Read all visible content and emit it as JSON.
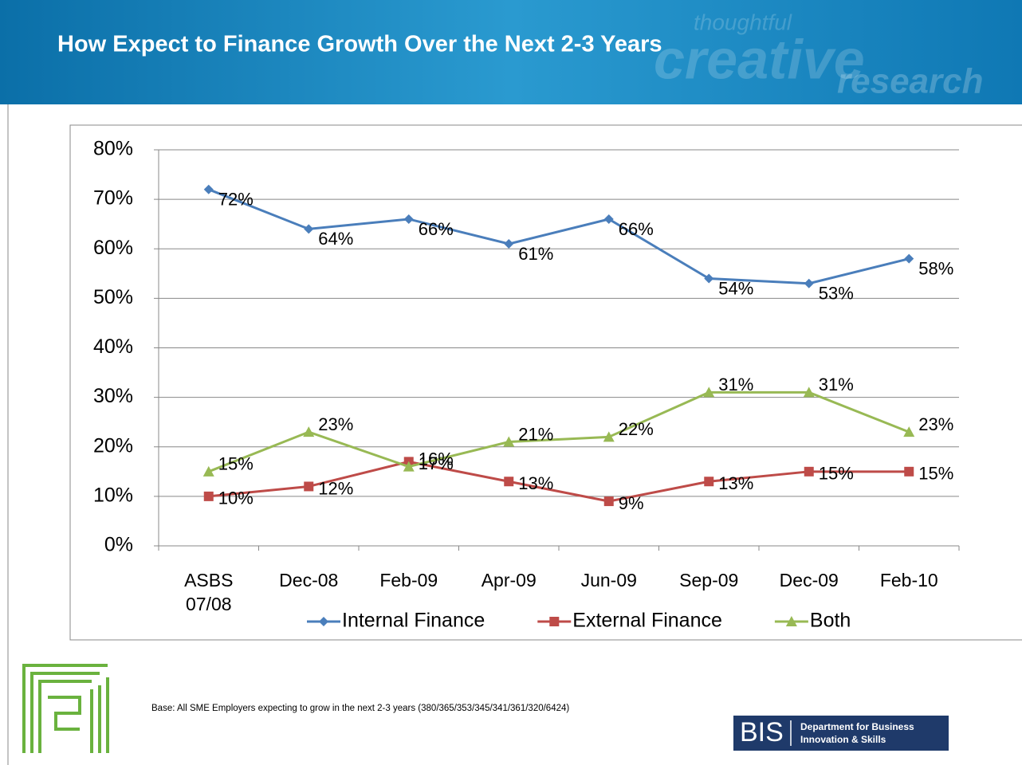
{
  "slide": {
    "title": "How Expect to Finance Growth Over the Next 2-3 Years",
    "watermark": [
      "thoughtful",
      "creative",
      "research"
    ],
    "footnote": "Base: All SME Employers expecting to grow in the next 2-3 years (380/365/353/345/341/361/320/6424)",
    "logo": {
      "mark": "BIS",
      "line1": "Department for Business",
      "line2": "Innovation & Skills"
    }
  },
  "chart_data": {
    "type": "line",
    "categories": [
      "ASBS 07/08",
      "Dec-08",
      "Feb-09",
      "Apr-09",
      "Jun-09",
      "Sep-09",
      "Dec-09",
      "Feb-10"
    ],
    "series": [
      {
        "name": "Internal Finance",
        "color": "#4a7ebb",
        "marker": "diamond",
        "values": [
          72,
          64,
          66,
          61,
          66,
          54,
          53,
          58
        ],
        "value_labels": [
          "72%",
          "64%",
          "66%",
          "61%",
          "66%",
          "54%",
          "53%",
          "58%"
        ]
      },
      {
        "name": "External Finance",
        "color": "#be4b48",
        "marker": "square",
        "values": [
          10,
          12,
          17,
          13,
          9,
          13,
          15,
          15
        ],
        "value_labels": [
          "10%",
          "12%",
          "17%",
          "13%",
          "9%",
          "13%",
          "15%",
          "15%"
        ]
      },
      {
        "name": "Both",
        "color": "#98b954",
        "marker": "triangle",
        "values": [
          15,
          23,
          16,
          21,
          22,
          31,
          31,
          23
        ],
        "value_labels": [
          "15%",
          "23%",
          "16%",
          "21%",
          "22%",
          "31%",
          "31%",
          "23%"
        ]
      }
    ],
    "ylim": [
      0,
      80
    ],
    "yticks": [
      {
        "value": 0,
        "label": "0%"
      },
      {
        "value": 10,
        "label": "10%"
      },
      {
        "value": 20,
        "label": "20%"
      },
      {
        "value": 30,
        "label": "30%"
      },
      {
        "value": 40,
        "label": "40%"
      },
      {
        "value": 50,
        "label": "50%"
      },
      {
        "value": 60,
        "label": "60%"
      },
      {
        "value": 70,
        "label": "70%"
      },
      {
        "value": 80,
        "label": "80%"
      }
    ],
    "grid": true,
    "legend": "bottom"
  }
}
